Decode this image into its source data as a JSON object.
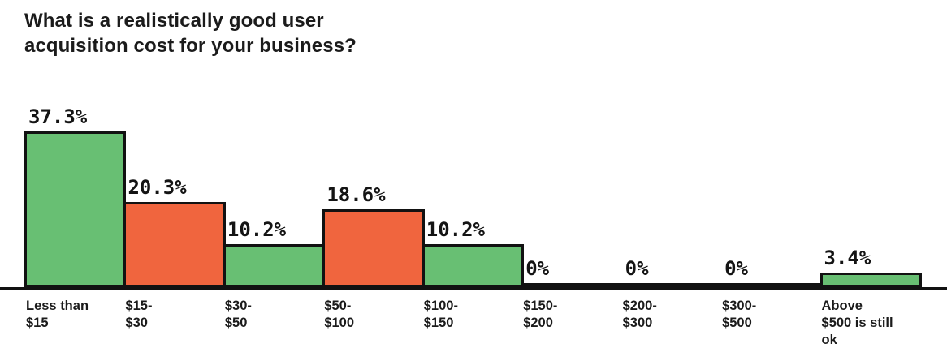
{
  "chart_data": {
    "type": "bar",
    "title": "What is a realistically good user\nacquisition cost for your business?",
    "categories": [
      "Less than\n$15",
      "$15-\n$30",
      "$30-\n$50",
      "$50-\n$100",
      "$100-\n$150",
      "$150-\n$200",
      "$200-\n$300",
      "$300-\n$500",
      "Above\n$500 is still\nok"
    ],
    "values": [
      37.3,
      20.3,
      10.2,
      18.6,
      10.2,
      0,
      0,
      0,
      3.4
    ],
    "value_labels": [
      "37.3%",
      "20.3%",
      "10.2%",
      "18.6%",
      "10.2%",
      "0%",
      "0%",
      "0%",
      "3.4%"
    ],
    "bar_colors": [
      "green",
      "orange",
      "green",
      "orange",
      "green",
      "orange",
      "green",
      "orange",
      "green"
    ],
    "colors": {
      "green": "#68BF73",
      "orange": "#F0653E",
      "outline": "#121212",
      "axis": "#121212",
      "text": "#141414"
    },
    "xlabel": "",
    "ylabel": "",
    "ylim": [
      0,
      40
    ],
    "grid": false,
    "legend": "none"
  }
}
